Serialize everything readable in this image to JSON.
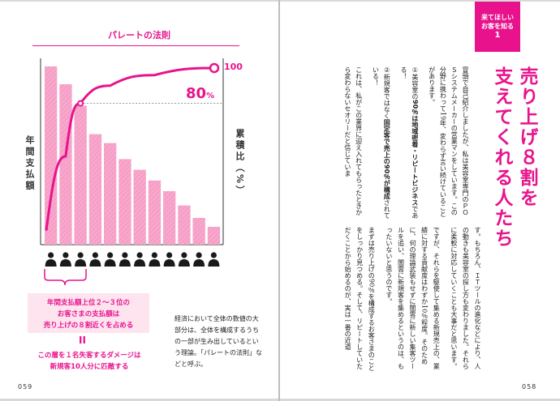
{
  "chart_data": {
    "type": "bar",
    "title": "パレートの法則",
    "ylabel_left": "年間支払額",
    "ylabel_right": "累積比（%）",
    "values": [
      100,
      90,
      78,
      62,
      57,
      48,
      42,
      36,
      30,
      22,
      15,
      10
    ],
    "cumulative_labels": {
      "max": "100",
      "threshold": "80",
      "threshold_unit": "%"
    },
    "cumulative_curve": [
      [
        0,
        8
      ],
      [
        1,
        50
      ],
      [
        2,
        80
      ],
      [
        4,
        90
      ],
      [
        7,
        96
      ],
      [
        12,
        100
      ]
    ],
    "customers_count": 12,
    "highlighted_customers": 3
  },
  "left_page": {
    "callout_lines": [
      "年間支払額上位２〜３位の",
      "お客さまの支払額は",
      "売り上げの８割近くを占める"
    ],
    "equals_sign": "II",
    "note_lines": [
      "この層を１名失客するダメージは",
      "新規客10人分に匹敵する"
    ],
    "caption": "経済において全体の数値の大部分は、全体を構成するうちの一部が生み出しているという理論。「パレートの法則」などと呼ぶ。",
    "folio": "059"
  },
  "right_page": {
    "badge_lines": [
      "来てほしい",
      "お客を知る"
    ],
    "badge_number": "1",
    "headline_lines": [
      "売り上げ８割を",
      "支えてくれる人たち"
    ],
    "p1": "冒頭で自己紹介しましたが、私は美容室専門のＰＯＳシステムメーカーの営業マンをしています。この分野に携わって19年、変わらず言い続けていることがあります。",
    "p2_num": "①",
    "p2_pre": "美容室の",
    "p2_bold": "90％は地域密着・リピートビジネス",
    "p2_post": "である！",
    "p3_num": "②",
    "p3_pre": "新規客ではなく",
    "p3_bold": "固定客で売上の90％が構成",
    "p3_post": "されている！",
    "p4": "これは、私がこの業界に迎え入れてもらったときから変わらないセオリーだと信じていま",
    "p5": "す。もちろん、ＩＴツールの進化などにより、人の動きも美容室の探し方も変わりました。それらに柔軟に対応していくことも大事だと思います。",
    "p6": "ですが、それらを駆使して集める新規売上の、業績に対する貢献度はわずか10％程度。そのために、何の理論武装もせずに闇雲に新しい集客ツールを追い、闇雲に新規客を集めるというのは、もったいないと思うのです。",
    "p7": "まずは売り上げの90％を構成するお客さまのことをしっかり見つめる。そして、リピートしていただくことから始めるのが、実は一番の近道",
    "folio": "058"
  }
}
